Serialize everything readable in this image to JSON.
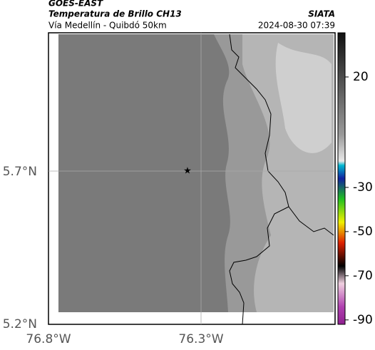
{
  "header": {
    "title": "GOES-EAST",
    "subtitle": "Temperatura de Brillo CH13",
    "location": "Vía Medellín - Quibdó 50km",
    "source": "SIATA",
    "datetime": "2024-08-30 07:39"
  },
  "map": {
    "lat_labels": [
      "5.7°N",
      "5.2°N"
    ],
    "lon_labels": [
      "76.8°W",
      "76.3°W"
    ]
  },
  "colorbar": {
    "lim": [
      -92,
      40
    ],
    "ticks": [
      20,
      -30,
      -50,
      -70,
      -90
    ]
  }
}
